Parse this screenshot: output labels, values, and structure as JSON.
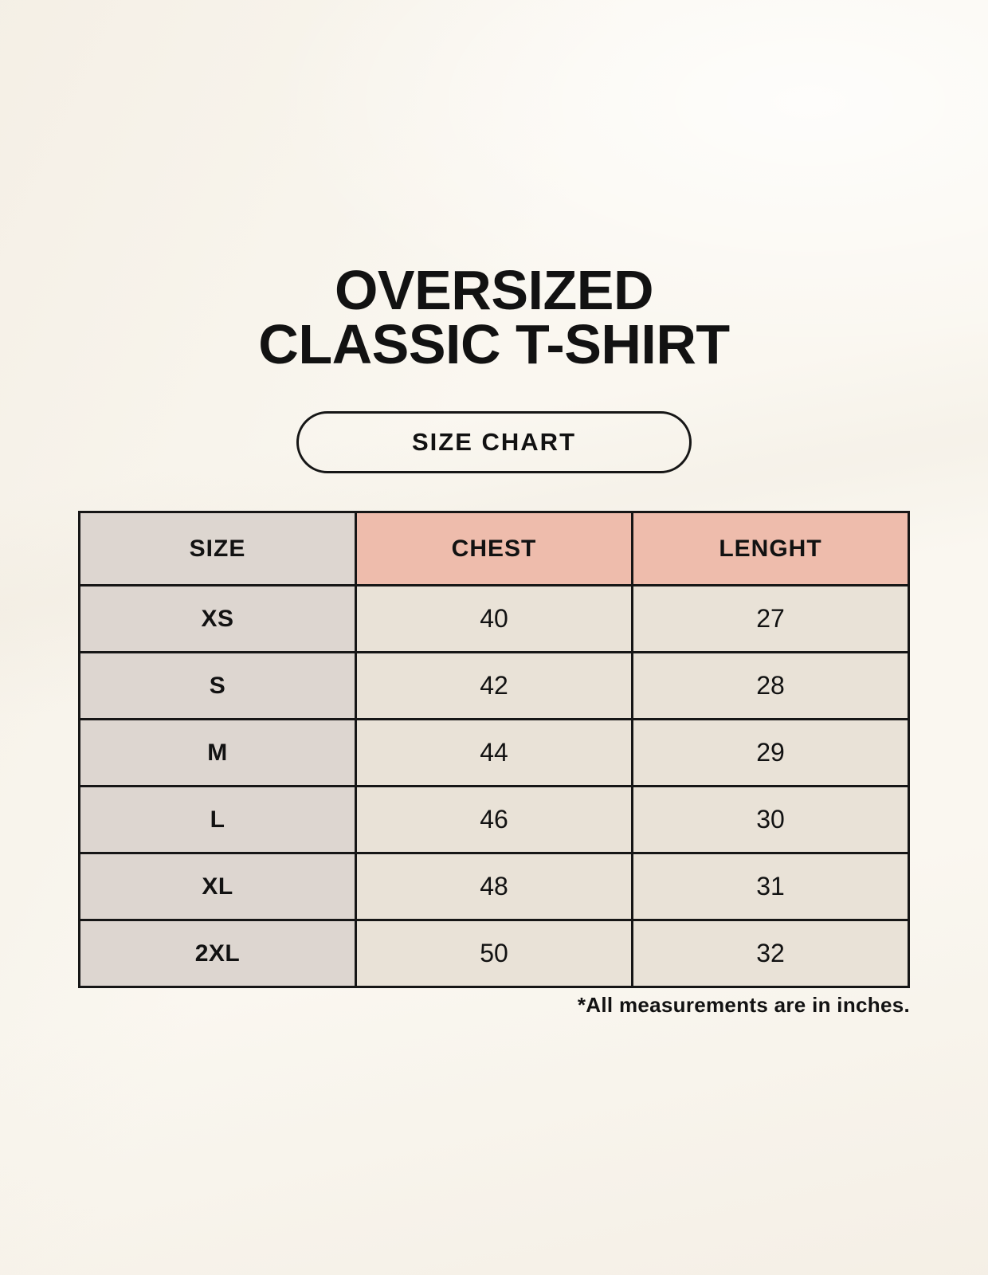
{
  "page": {
    "title_line1": "OVERSIZED",
    "title_line2": "CLASSIC T-SHIRT",
    "badge_label": "SIZE CHART",
    "footnote": "*All measurements are in inches."
  },
  "colors": {
    "background": "#faf7f0",
    "header_accent": "#eebcac",
    "size_column": "#ddd6d0",
    "data_cell": "#e9e2d7",
    "border": "#161616",
    "text": "#121212"
  },
  "chart_data": {
    "type": "table",
    "title": "OVERSIZED CLASSIC T-SHIRT",
    "subtitle": "SIZE CHART",
    "columns": [
      "SIZE",
      "CHEST",
      "LENGHT"
    ],
    "rows": [
      [
        "XS",
        "40",
        "27"
      ],
      [
        "S",
        "42",
        "28"
      ],
      [
        "M",
        "44",
        "29"
      ],
      [
        "L",
        "46",
        "30"
      ],
      [
        "XL",
        "48",
        "31"
      ],
      [
        "2XL",
        "50",
        "32"
      ]
    ],
    "units_note": "*All measurements are in inches."
  }
}
